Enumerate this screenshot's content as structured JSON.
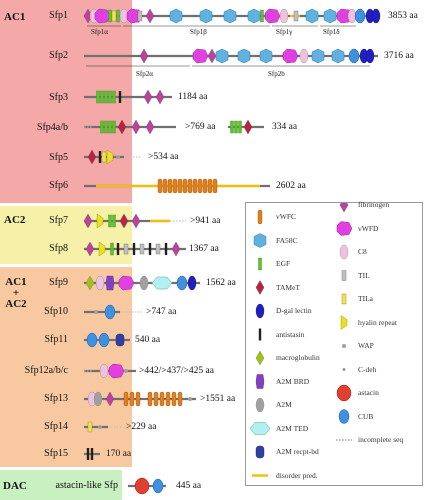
{
  "groups": [
    {
      "label": "AC1",
      "color": "#f4a8a8"
    },
    {
      "label": "AC2",
      "color": "#f7f0a8"
    },
    {
      "label": "AC1\n+\nAC2",
      "color": "#f8c9a0"
    },
    {
      "label": "DAC",
      "color": "#c8f0c0"
    }
  ],
  "proteins": [
    {
      "name": "Sfp1",
      "length": "3853 aa"
    },
    {
      "name": "Sfp2",
      "length": "3716 aa"
    },
    {
      "name": "Sfp3",
      "length": "1184 aa"
    },
    {
      "name": "Sfp4a/b",
      "length": ">769 aa",
      "length2": "334 aa"
    },
    {
      "name": "Sfp5",
      "length": ">534 aa"
    },
    {
      "name": "Sfp6",
      "length": "2602 aa"
    },
    {
      "name": "Sfp7",
      "length": ">941 aa"
    },
    {
      "name": "Sfp8",
      "length": "1367 aa"
    },
    {
      "name": "Sfp9",
      "length": "1562 aa"
    },
    {
      "name": "Sfp10",
      "length": ">747 aa"
    },
    {
      "name": "Sfp11",
      "length": "540 aa"
    },
    {
      "name": "Sfp12a/b/c",
      "length": ">442/>437/>425 aa"
    },
    {
      "name": "Sfp13",
      "length": ">1551 aa"
    },
    {
      "name": "Sfp14",
      "length": ">229 aa"
    },
    {
      "name": "Sfp15",
      "length": "170 aa"
    },
    {
      "name": "astacin-like Sfp",
      "length": "445 aa"
    }
  ],
  "subregions_sfp1": [
    "Sfp1α",
    "Sfp1β",
    "Sfp1γ",
    "Sfp1δ"
  ],
  "subregions_sfp2": [
    "Sfp2α",
    "Sfp2b"
  ],
  "legend": [
    {
      "label": "vWFC",
      "icon": "vwfc"
    },
    {
      "label": "fibrinogen",
      "icon": "fibrinogen"
    },
    {
      "label": "FA58C",
      "icon": "fa58c"
    },
    {
      "label": "vWFD",
      "icon": "vwfd"
    },
    {
      "label": "EGF",
      "icon": "egf"
    },
    {
      "label": "C8",
      "icon": "c8"
    },
    {
      "label": "TAMeT",
      "icon": "tamet"
    },
    {
      "label": "TIL",
      "icon": "til"
    },
    {
      "label": "D-gal lectin",
      "icon": "dgal"
    },
    {
      "label": "TILa",
      "icon": "tila"
    },
    {
      "label": "antistasin",
      "icon": "antistasin"
    },
    {
      "label": "hyalin repeat",
      "icon": "hyalin"
    },
    {
      "label": "macroglobulin",
      "icon": "macroglobulin"
    },
    {
      "label": "WAP",
      "icon": "wap"
    },
    {
      "label": "A2M BRD",
      "icon": "a2mbrd"
    },
    {
      "label": "C-deh",
      "icon": "cdeh"
    },
    {
      "label": "A2M",
      "icon": "a2m"
    },
    {
      "label": "astacin",
      "icon": "astacin"
    },
    {
      "label": "A2M TED",
      "icon": "a2mted"
    },
    {
      "label": "CUB",
      "icon": "cub"
    },
    {
      "label": "A2M recpt-bd",
      "icon": "a2mrecpt"
    },
    {
      "label": "incomplete seq",
      "icon": "incomplete"
    },
    {
      "label": "disorder pred.",
      "icon": "disorder"
    }
  ],
  "colors": {
    "fibrinogen": "#c040a0",
    "vwfd": "#e040e0",
    "c8": "#f0c0e0",
    "til": "#c0c0c0",
    "tila": "#f0e060",
    "hyalin": "#e8e020",
    "wap": "#a0a0a0",
    "astacin": "#e04030",
    "cub": "#4090e0",
    "vwfc": "#e08020",
    "fa58c": "#60b0e0",
    "egf": "#60c030",
    "tamet": "#c02040",
    "dgal": "#2020c0",
    "antistasin": "#202020",
    "macroglobulin": "#a0c020",
    "a2mbrd": "#8040c0",
    "a2m": "#a0a0a0",
    "a2mted": "#b0f0f0",
    "a2mrecpt": "#3040a0",
    "disorder": "#f0c000",
    "backbone": "#707070"
  }
}
